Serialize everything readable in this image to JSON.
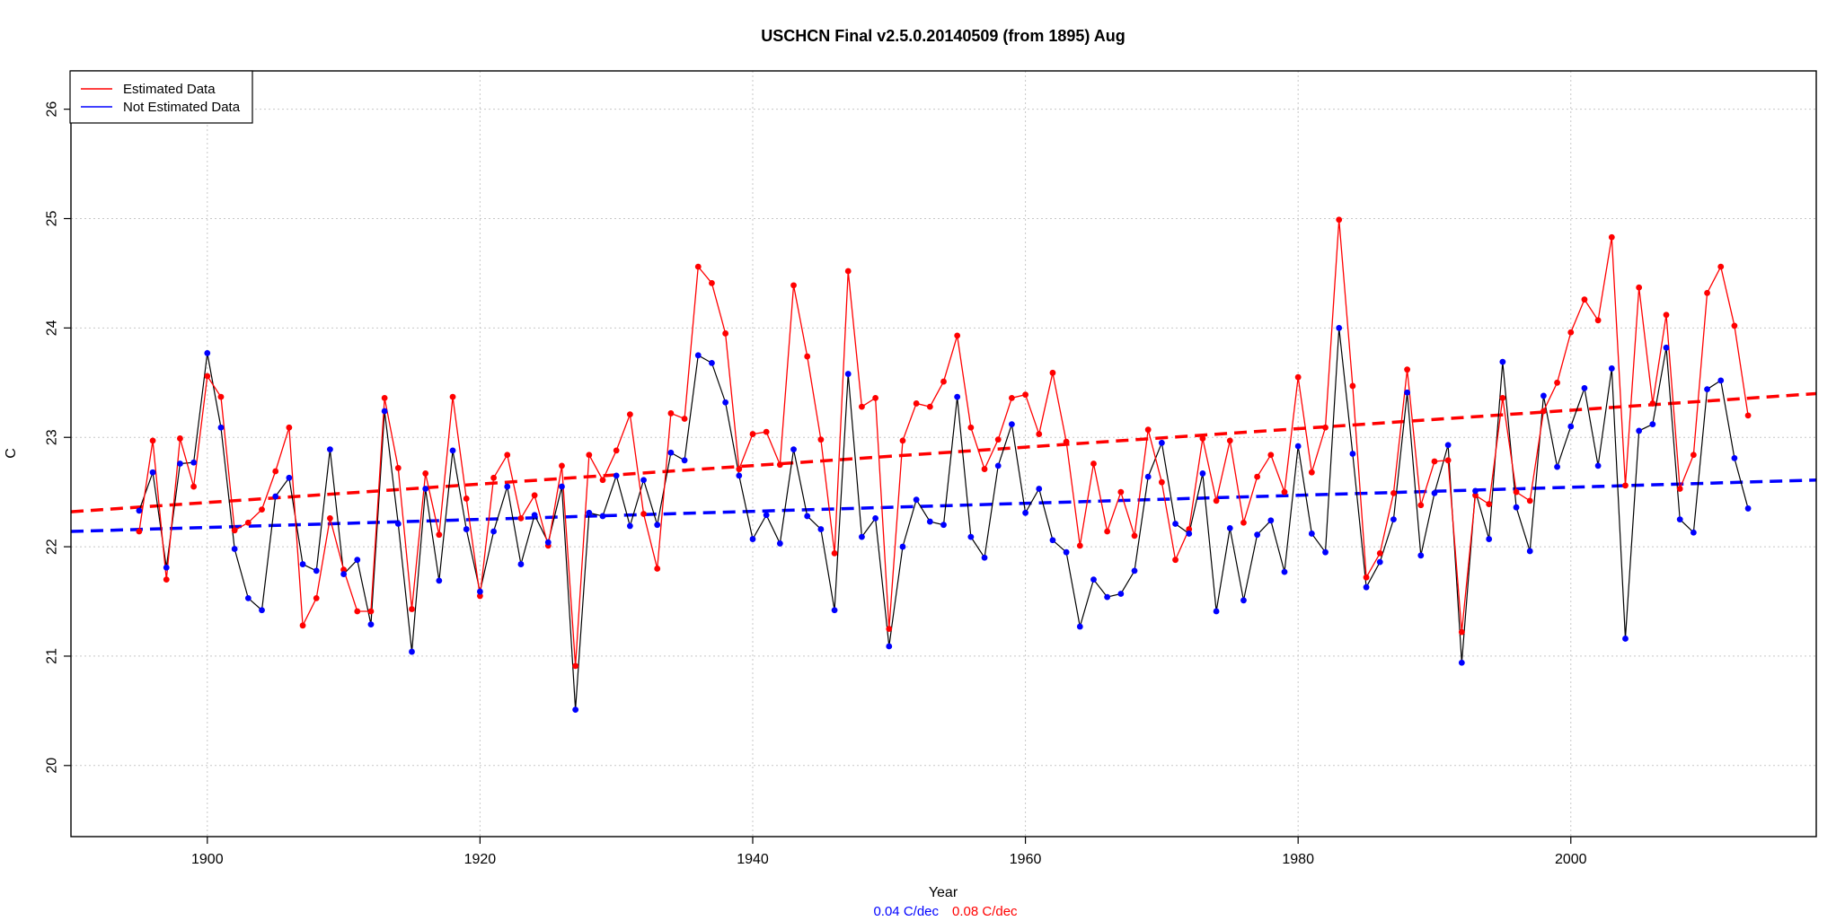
{
  "chart_data": {
    "type": "line",
    "title": "USCHCN Final v2.5.0.20140509 (from 1895) Aug",
    "xlabel": "Year",
    "ylabel": "C",
    "xlim": [
      1890,
      2018
    ],
    "ylim": [
      19.35,
      26.35
    ],
    "x_ticks": [
      1900,
      1920,
      1940,
      1960,
      1980,
      2000
    ],
    "y_ticks": [
      20,
      21,
      22,
      23,
      24,
      25,
      26
    ],
    "grid": true,
    "legend_position": "top-left",
    "colors": {
      "estimated": "#ff0000",
      "not_estimated": "#0000ff",
      "connector": "#000000",
      "grid": "#c8c8c8"
    },
    "series": [
      {
        "name": "Estimated Data",
        "color": "#ff0000",
        "start_year": 1895,
        "values": [
          22.14,
          22.97,
          21.7,
          22.99,
          22.55,
          23.56,
          23.37,
          22.15,
          22.22,
          22.34,
          22.69,
          23.09,
          21.28,
          21.53,
          22.26,
          21.79,
          21.41,
          21.41,
          23.36,
          22.72,
          21.43,
          22.67,
          22.11,
          23.37,
          22.44,
          21.55,
          22.63,
          22.84,
          22.26,
          22.47,
          22.01,
          22.74,
          20.91,
          22.84,
          22.61,
          22.88,
          23.21,
          22.3,
          21.8,
          23.22,
          23.17,
          24.56,
          24.41,
          23.95,
          22.71,
          23.03,
          23.05,
          22.75,
          24.39,
          23.74,
          22.98,
          21.94,
          24.52,
          23.28,
          23.36,
          21.25,
          22.97,
          23.31,
          23.28,
          23.51,
          23.93,
          23.09,
          22.71,
          22.98,
          23.36,
          23.39,
          23.03,
          23.59,
          22.96,
          22.01,
          22.76,
          22.14,
          22.5,
          22.1,
          23.07,
          22.59,
          21.88,
          22.16,
          22.99,
          22.42,
          22.97,
          22.22,
          22.64,
          22.84,
          22.5,
          23.55,
          22.68,
          23.09,
          24.99,
          23.47,
          21.72,
          21.94,
          22.49,
          23.62,
          22.38,
          22.78,
          22.79,
          21.22,
          22.47,
          22.39,
          23.36,
          22.5,
          22.42,
          23.24,
          23.5,
          23.96,
          24.26,
          24.07,
          24.83,
          22.56,
          24.37,
          23.31,
          24.12,
          22.53,
          22.84,
          24.32,
          24.56,
          24.02,
          23.2
        ]
      },
      {
        "name": "Not Estimated Data",
        "color": "#0000ff",
        "start_year": 1895,
        "values": [
          22.33,
          22.68,
          21.81,
          22.76,
          22.77,
          23.77,
          23.09,
          21.98,
          21.53,
          21.42,
          22.46,
          22.63,
          21.84,
          21.78,
          22.89,
          21.75,
          21.88,
          21.29,
          23.24,
          22.21,
          21.04,
          22.53,
          21.69,
          22.88,
          22.16,
          21.59,
          22.14,
          22.55,
          21.84,
          22.29,
          22.04,
          22.55,
          20.51,
          22.31,
          22.28,
          22.65,
          22.19,
          22.61,
          22.2,
          22.86,
          22.79,
          23.75,
          23.68,
          23.32,
          22.65,
          22.07,
          22.29,
          22.03,
          22.89,
          22.28,
          22.16,
          21.42,
          23.58,
          22.09,
          22.26,
          21.09,
          22.0,
          22.43,
          22.23,
          22.2,
          23.37,
          22.09,
          21.9,
          22.74,
          23.12,
          22.31,
          22.53,
          22.06,
          21.95,
          21.27,
          21.7,
          21.54,
          21.57,
          21.78,
          22.64,
          22.95,
          22.21,
          22.12,
          22.67,
          21.41,
          22.17,
          21.51,
          22.11,
          22.24,
          21.77,
          22.92,
          22.12,
          21.95,
          24.0,
          22.85,
          21.63,
          21.86,
          22.25,
          23.41,
          21.92,
          22.49,
          22.93,
          20.94,
          22.51,
          22.07,
          23.69,
          22.36,
          21.96,
          23.38,
          22.73,
          23.1,
          23.45,
          22.74,
          23.63,
          21.16,
          23.06,
          23.12,
          23.82,
          22.25,
          22.13,
          23.44,
          23.52,
          22.81,
          22.35
        ]
      }
    ],
    "trend_lines": [
      {
        "name": "Estimated Data trend",
        "color": "#ff0000",
        "x": [
          1890,
          2018
        ],
        "y": [
          22.32,
          23.4
        ],
        "style": "dashed",
        "label": "0.08 C/dec"
      },
      {
        "name": "Not Estimated Data trend",
        "color": "#0000ff",
        "x": [
          1890,
          2018
        ],
        "y": [
          22.14,
          22.61
        ],
        "style": "dashed",
        "label": "0.04 C/dec"
      }
    ],
    "legend": [
      "Estimated Data",
      "Not Estimated Data"
    ],
    "annotations": {
      "blue_rate": "0.04 C/dec",
      "red_rate": "0.08 C/dec"
    }
  }
}
